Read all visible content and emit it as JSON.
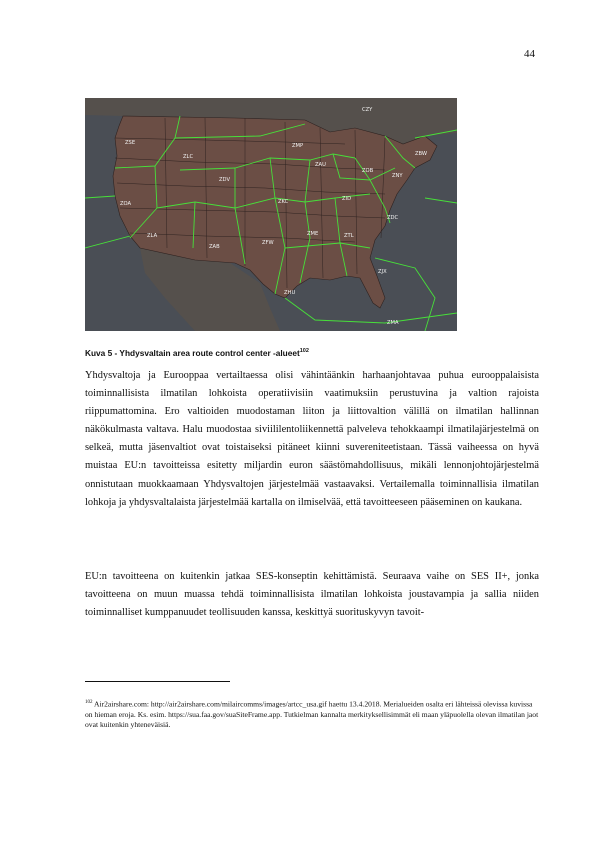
{
  "page": {
    "number": "44"
  },
  "figure": {
    "caption": "Kuva 5 - Yhdysvaltain area route control center -alueet",
    "caption_ref": "102",
    "labels": [
      "CZY",
      "ZSE",
      "ZMP",
      "ZBW",
      "ZLC",
      "ZAU",
      "ZOB",
      "ZNY",
      "ZDV",
      "ZKC",
      "ZID",
      "ZOA",
      "ZDC",
      "ZME",
      "ZTL",
      "ZLA",
      "ZAB",
      "ZFW",
      "ZHU",
      "ZJX",
      "ZMA"
    ],
    "colors": {
      "land": "#6b4e45",
      "water": "#4a4e55",
      "boundary": "#47e03a",
      "state_line": "#2e2220"
    }
  },
  "body": {
    "p1": "Yhdysvaltoja ja Eurooppaa vertailtaessa olisi vähintäänkin harhaanjohtavaa puhua eurooppalaisista toiminnallisista ilmatilan lohkoista operatiivisiin vaatimuksiin perustuvina ja valtion rajoista riippumattomina. Ero valtioiden muodostaman liiton ja liittovaltion välillä on ilmatilan hallinnan näkökulmasta valtava. Halu muodostaa siviililentoliikennettä palveleva tehokkaampi ilmatilajärjestelmä on selkeä, mutta jäsenvaltiot ovat toistaiseksi pitäneet kiinni suvereniteetistaan. Tässä vaiheessa on hyvä muistaa EU:n tavoitteissa esitetty miljardin euron säästömahdollisuus, mikäli lennonjohtojärjestelmä onnistutaan muokkaamaan Yhdysvaltojen järjestelmää vastaavaksi. Vertailemalla toiminnallisia ilmatilan lohkoja ja yhdysvaltalaista järjestelmää kartalla on ilmiselvää, että tavoitteeseen pääseminen on kaukana.",
    "p2": "EU:n tavoitteena on kuitenkin jatkaa SES-konseptin kehittämistä. Seuraava vaihe on SES II+, jonka tavoitteena on muun muassa tehdä toiminnallisista ilmatilan lohkoista joustavampia ja sallia niiden toiminnalliset kumppanuudet teollisuuden kanssa, keskittyä suorituskyvyn tavoit-"
  },
  "footnote": {
    "ref": "102",
    "text": "Air2airshare.com: http://air2airshare.com/milaircomms/images/artcc_usa.gif  haettu 13.4.2018. Merialueiden osalta eri lähteissä olevissa kuvissa on hieman eroja. Ks. esim. https://sua.faa.gov/suaSiteFrame.app. Tutkielman kannalta merkityksellisimmät eli maan yläpuolella olevan ilmatilan jaot ovat kuitenkin yhteneväisiä."
  }
}
